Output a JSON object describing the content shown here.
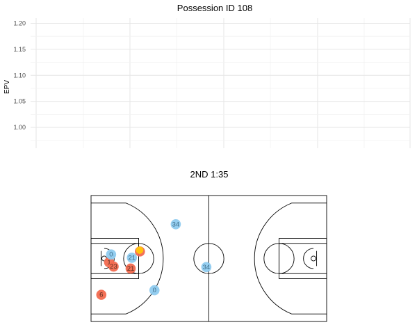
{
  "chart_data": [
    {
      "type": "line",
      "title": "Possession ID 108",
      "xlabel": "",
      "ylabel": "EPV",
      "ylim": [
        0.96,
        1.21
      ],
      "yticks": [
        1.0,
        1.05,
        1.1,
        1.15,
        1.2
      ],
      "ytick_labels": [
        "1.00",
        "1.05",
        "1.10",
        "1.15",
        "1.20"
      ],
      "grid": true,
      "series": []
    },
    {
      "type": "scatter",
      "title": "2ND 1:35",
      "court": {
        "length_ft": 94,
        "width_ft": 50
      },
      "colors": {
        "offense": "#f26a4f",
        "defense": "#8fcbef",
        "ball": "#ffc20e",
        "offense_text": "#5a2d1f",
        "defense_text": "#3f6f8c"
      },
      "players": [
        {
          "team": "offense",
          "label": "1",
          "x": 7.2,
          "y": 23.5
        },
        {
          "team": "offense",
          "label": "23",
          "x": 9.0,
          "y": 21.8
        },
        {
          "team": "offense",
          "label": "21",
          "x": 15.8,
          "y": 21.0
        },
        {
          "team": "offense",
          "label": "6",
          "x": 4.1,
          "y": 10.6
        },
        {
          "team": "offense",
          "label": "",
          "x": 19.5,
          "y": 27.8
        },
        {
          "team": "defense",
          "label": "0",
          "x": 8.0,
          "y": 26.6
        },
        {
          "team": "defense",
          "label": "21",
          "x": 16.3,
          "y": 25.3
        },
        {
          "team": "defense",
          "label": "34",
          "x": 33.8,
          "y": 38.6
        },
        {
          "team": "defense",
          "label": "34",
          "x": 46.0,
          "y": 21.6
        },
        {
          "team": "defense",
          "label": "0",
          "x": 25.3,
          "y": 12.4
        }
      ],
      "ball": {
        "x": 19.4,
        "y": 28.3
      }
    }
  ]
}
